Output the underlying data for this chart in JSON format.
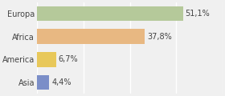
{
  "categories": [
    "Europa",
    "Africa",
    "America",
    "Asia"
  ],
  "values": [
    51.1,
    37.8,
    6.7,
    4.4
  ],
  "labels": [
    "51,1%",
    "37,8%",
    "6,7%",
    "4,4%"
  ],
  "bar_colors": [
    "#b5c99a",
    "#e8b882",
    "#e8c85a",
    "#7b8ec8"
  ],
  "background_color": "#f0f0f0",
  "xlim": [
    0,
    65
  ],
  "bar_height": 0.65,
  "label_fontsize": 7,
  "category_fontsize": 7,
  "grid_color": "#ffffff",
  "grid_xticks": [
    0,
    16.25,
    32.5,
    48.75,
    65
  ]
}
